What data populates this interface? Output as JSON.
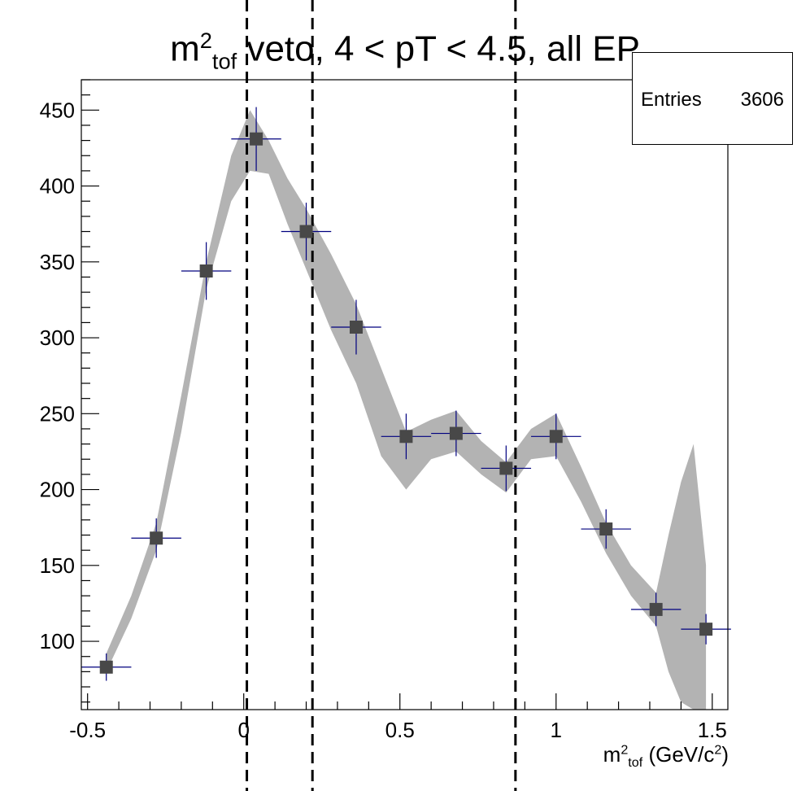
{
  "chart_data": {
    "type": "scatter",
    "title": {
      "base": "m",
      "sup": "2",
      "sub": "tof",
      "rest": " veto, 4 < pT < 4.5, all EP"
    },
    "xlabel": {
      "base": "m",
      "sup": "2",
      "sub": "tof",
      "rest": " (GeV/c",
      "unit_sup": "2",
      "close": ")"
    },
    "ylabel": "",
    "xlim": [
      -0.52,
      1.55
    ],
    "ylim": [
      55,
      470
    ],
    "x_ticks": [
      -0.5,
      0,
      0.5,
      1,
      1.5
    ],
    "x_tick_labels": [
      "-0.5",
      "0",
      "0.5",
      "1",
      "1.5"
    ],
    "y_ticks": [
      100,
      150,
      200,
      250,
      300,
      350,
      400,
      450
    ],
    "y_tick_labels": [
      "100",
      "150",
      "200",
      "250",
      "300",
      "350",
      "400",
      "450"
    ],
    "grid": false,
    "stats": {
      "label": "Entries",
      "value": "3606"
    },
    "marker_color": "#484848",
    "error_bar_color": "#00007f",
    "band_color": "#b3b3b3",
    "series": [
      {
        "x": [
          -0.44,
          -0.28,
          -0.12,
          0.04,
          0.2,
          0.36,
          0.52,
          0.68,
          0.84,
          1.0,
          1.16,
          1.32,
          1.48
        ],
        "y": [
          83,
          168,
          344,
          431,
          370,
          307,
          235,
          237,
          214,
          235,
          174,
          121,
          108
        ],
        "yerr": [
          9,
          13,
          19,
          21,
          19,
          18,
          15,
          15,
          15,
          15,
          13,
          11,
          10
        ],
        "xerr": 0.08
      }
    ],
    "band": {
      "x": [
        -0.44,
        -0.36,
        -0.28,
        -0.2,
        -0.12,
        -0.04,
        0.02,
        0.08,
        0.14,
        0.2,
        0.28,
        0.36,
        0.44,
        0.52,
        0.6,
        0.68,
        0.76,
        0.84,
        0.92,
        1.0,
        1.08,
        1.16,
        1.24,
        1.32,
        1.36,
        1.4,
        1.44,
        1.48
      ],
      "upper": [
        92,
        130,
        178,
        262,
        350,
        420,
        450,
        430,
        405,
        385,
        355,
        322,
        280,
        238,
        246,
        252,
        232,
        218,
        240,
        250,
        215,
        178,
        150,
        132,
        170,
        205,
        230,
        150
      ],
      "lower": [
        80,
        115,
        160,
        238,
        332,
        390,
        410,
        408,
        375,
        345,
        305,
        270,
        222,
        200,
        220,
        225,
        210,
        198,
        220,
        222,
        192,
        158,
        130,
        110,
        80,
        60,
        55,
        55
      ]
    },
    "vlines": [
      0.01,
      0.22,
      0.87
    ]
  }
}
